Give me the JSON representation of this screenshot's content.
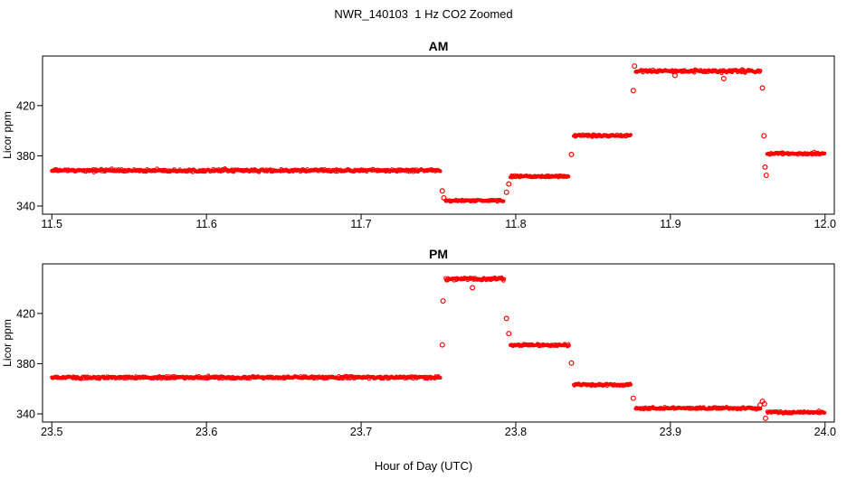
{
  "title": "NWR_140103  1 Hz CO2 Zoomed",
  "xlabel": "Hour of Day (UTC)",
  "point_color": "#FF0000",
  "chart_data": [
    {
      "type": "scatter",
      "panel": "AM",
      "title": "AM",
      "ylabel": "Licor ppm",
      "marker": "open-circle",
      "grid": false,
      "xlim": [
        11.494,
        12.006
      ],
      "ylim": [
        333.5,
        459.5
      ],
      "xticks": [
        11.5,
        11.6,
        11.7,
        11.8,
        11.9,
        12.0
      ],
      "xtick_labels": [
        "11.5",
        "11.6",
        "11.7",
        "11.8",
        "11.9",
        "12.0"
      ],
      "yticks": [
        340,
        380,
        420
      ],
      "ytick_labels": [
        "340",
        "380",
        "420"
      ],
      "segments": [
        {
          "x0": 11.5,
          "x1": 11.7515,
          "y": 368.3,
          "noise": 1.4
        },
        {
          "x0": 11.7545,
          "x1": 11.7925,
          "y": 344.3,
          "noise": 1.2
        },
        {
          "x0": 11.7965,
          "x1": 11.8345,
          "y": 363.6,
          "noise": 1.2
        },
        {
          "x0": 11.8375,
          "x1": 11.8745,
          "y": 396.2,
          "noise": 1.2
        },
        {
          "x0": 11.8775,
          "x1": 11.9585,
          "y": 447.5,
          "noise": 1.5
        },
        {
          "x0": 11.9625,
          "x1": 12.0,
          "y": 381.8,
          "noise": 1.2
        }
      ],
      "outliers": [
        {
          "x": 11.7525,
          "y": 352.0
        },
        {
          "x": 11.7535,
          "y": 346.5
        },
        {
          "x": 11.794,
          "y": 351.0
        },
        {
          "x": 11.7955,
          "y": 357.5
        },
        {
          "x": 11.836,
          "y": 381.0
        },
        {
          "x": 11.876,
          "y": 432.0
        },
        {
          "x": 11.8768,
          "y": 451.5
        },
        {
          "x": 11.903,
          "y": 444.0
        },
        {
          "x": 11.9345,
          "y": 441.5
        },
        {
          "x": 11.9595,
          "y": 434.0
        },
        {
          "x": 11.9605,
          "y": 396.0
        },
        {
          "x": 11.9612,
          "y": 371.0
        },
        {
          "x": 11.962,
          "y": 364.5
        }
      ]
    },
    {
      "type": "scatter",
      "panel": "PM",
      "title": "PM",
      "ylabel": "Licor ppm",
      "marker": "open-circle",
      "grid": false,
      "xlim": [
        23.494,
        24.006
      ],
      "ylim": [
        333.5,
        459.5
      ],
      "xticks": [
        23.5,
        23.6,
        23.7,
        23.8,
        23.9,
        24.0
      ],
      "xtick_labels": [
        "23.5",
        "23.6",
        "23.7",
        "23.8",
        "23.9",
        "24.0"
      ],
      "yticks": [
        340,
        380,
        420
      ],
      "ytick_labels": [
        "340",
        "380",
        "420"
      ],
      "segments": [
        {
          "x0": 23.5,
          "x1": 23.7515,
          "y": 369.0,
          "noise": 1.4
        },
        {
          "x0": 23.7545,
          "x1": 23.7925,
          "y": 447.5,
          "noise": 1.5
        },
        {
          "x0": 23.7965,
          "x1": 23.8345,
          "y": 394.8,
          "noise": 1.2
        },
        {
          "x0": 23.8375,
          "x1": 23.8745,
          "y": 363.2,
          "noise": 1.2
        },
        {
          "x0": 23.8775,
          "x1": 23.9585,
          "y": 344.5,
          "noise": 1.2
        },
        {
          "x0": 23.9625,
          "x1": 24.0,
          "y": 341.2,
          "noise": 1.2
        }
      ],
      "outliers": [
        {
          "x": 23.7525,
          "y": 395.0
        },
        {
          "x": 23.753,
          "y": 430.0
        },
        {
          "x": 23.772,
          "y": 440.5
        },
        {
          "x": 23.794,
          "y": 416.0
        },
        {
          "x": 23.7955,
          "y": 404.0
        },
        {
          "x": 23.836,
          "y": 380.5
        },
        {
          "x": 23.876,
          "y": 352.5
        },
        {
          "x": 23.958,
          "y": 347.0
        },
        {
          "x": 23.9595,
          "y": 350.0
        },
        {
          "x": 23.9608,
          "y": 348.0
        },
        {
          "x": 23.9615,
          "y": 336.5
        }
      ]
    }
  ]
}
